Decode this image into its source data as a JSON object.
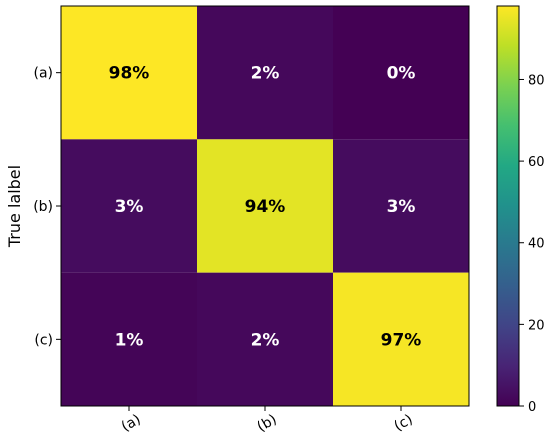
{
  "chart_data": {
    "type": "heatmap",
    "title": "",
    "xlabel": "",
    "ylabel": "True lalbel",
    "x_categories": [
      "(a)",
      "(b)",
      "(c)"
    ],
    "y_categories": [
      "(a)",
      "(b)",
      "(c)"
    ],
    "values": [
      [
        98,
        2,
        0
      ],
      [
        3,
        94,
        3
      ],
      [
        1,
        2,
        97
      ]
    ],
    "cell_labels": [
      [
        "98%",
        "2%",
        "0%"
      ],
      [
        "3%",
        "94%",
        "3%"
      ],
      [
        "1%",
        "2%",
        "97%"
      ]
    ],
    "colormap": "viridis",
    "colorbar": {
      "range": [
        0,
        98
      ],
      "ticks": [
        0,
        20,
        40,
        60,
        80
      ],
      "tick_labels": [
        "0",
        "20",
        "40",
        "60",
        "80"
      ]
    },
    "label_color_high": "#000000",
    "label_color_low": "#ffffff",
    "grid": false
  }
}
